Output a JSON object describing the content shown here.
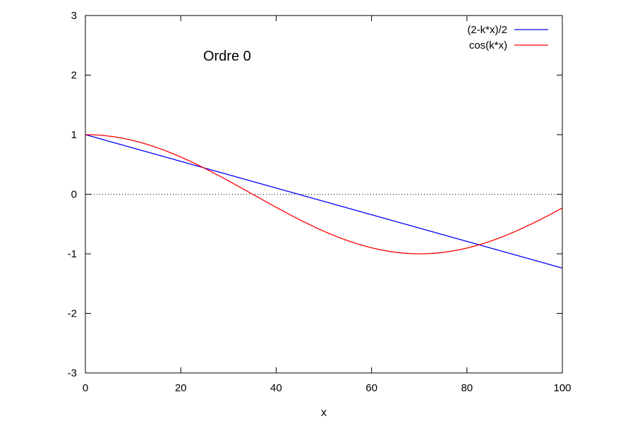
{
  "chart_data": {
    "type": "line",
    "title": "",
    "xlabel": "x",
    "ylabel": "",
    "xlim": [
      0,
      100
    ],
    "ylim": [
      -3,
      3
    ],
    "grid": false,
    "legend_position": "top-right",
    "x_ticks": [
      0,
      20,
      40,
      60,
      80,
      100
    ],
    "y_ticks": [
      -3,
      -2,
      -1,
      0,
      1,
      2,
      3
    ],
    "zero_line": "dotted",
    "annotation": "Ordre 0",
    "k": 0.0448,
    "series": [
      {
        "name": "(2-k*x)/2",
        "color": "#0000ff",
        "expression": "(2-k*x)/2"
      },
      {
        "name": "cos(k*x)",
        "color": "#ff0000",
        "expression": "cos(k*x)"
      }
    ]
  }
}
